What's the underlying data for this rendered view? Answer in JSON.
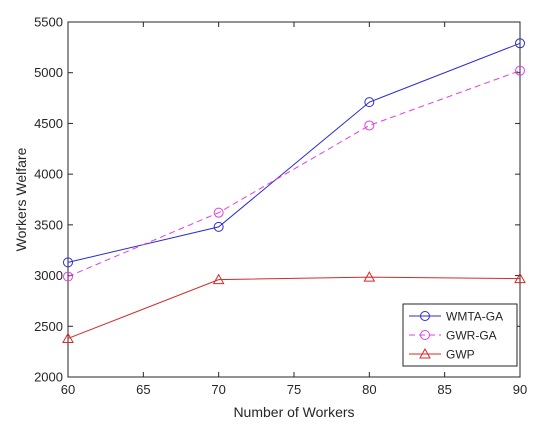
{
  "chart_data": {
    "type": "line",
    "x": [
      60,
      70,
      80,
      90
    ],
    "xlabel": "Number of Workers",
    "ylabel": "Workers Welfare",
    "xlim": [
      60,
      90
    ],
    "ylim": [
      2000,
      5500
    ],
    "xticks": [
      60,
      65,
      70,
      75,
      80,
      85,
      90
    ],
    "yticks": [
      2000,
      2500,
      3000,
      3500,
      4000,
      4500,
      5000,
      5500
    ],
    "grid": false,
    "legend_position": "bottom-right",
    "series": [
      {
        "name": "WMTA-GA",
        "values": [
          3130,
          3480,
          4710,
          5290
        ],
        "color": "#2a2ad6",
        "line_style": "solid",
        "marker": "circle"
      },
      {
        "name": "GWR-GA",
        "values": [
          2990,
          3620,
          4480,
          5020
        ],
        "color": "#e040e0",
        "line_style": "dashed",
        "marker": "circle"
      },
      {
        "name": "GWP",
        "values": [
          2380,
          2960,
          2985,
          2970
        ],
        "color": "#d42a2a",
        "line_style": "solid",
        "marker": "triangle"
      }
    ]
  }
}
